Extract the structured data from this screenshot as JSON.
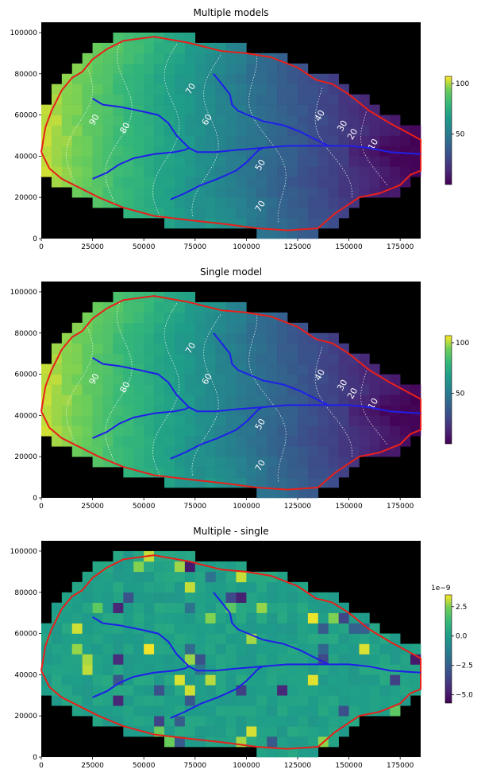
{
  "chart_data": [
    {
      "type": "heatmap",
      "title": "Multiple models",
      "x_ticks": [
        0,
        25000,
        50000,
        75000,
        100000,
        125000,
        150000,
        175000
      ],
      "y_ticks": [
        0,
        20000,
        40000,
        60000,
        80000,
        100000
      ],
      "xlim": [
        0,
        185000
      ],
      "ylim": [
        0,
        105000
      ],
      "colorbar": {
        "ticks": [
          50,
          100
        ],
        "range": [
          0,
          107
        ],
        "colormap": "viridis"
      },
      "contour_labels": [
        {
          "text": "90",
          "x": 27000,
          "y": 57000
        },
        {
          "text": "80",
          "x": 42000,
          "y": 53000
        },
        {
          "text": "70",
          "x": 74000,
          "y": 72000
        },
        {
          "text": "60",
          "x": 82000,
          "y": 57000
        },
        {
          "text": "50",
          "x": 108000,
          "y": 35000
        },
        {
          "text": "40",
          "x": 137000,
          "y": 59000
        },
        {
          "text": "30",
          "x": 148000,
          "y": 54000
        },
        {
          "text": "20",
          "x": 153000,
          "y": 50000
        },
        {
          "text": "10",
          "x": 163000,
          "y": 45000
        },
        {
          "text": "70",
          "x": 108000,
          "y": 15000
        }
      ]
    },
    {
      "type": "heatmap",
      "title": "Single model",
      "x_ticks": [
        0,
        25000,
        50000,
        75000,
        100000,
        125000,
        150000,
        175000
      ],
      "y_ticks": [
        0,
        20000,
        40000,
        60000,
        80000,
        100000
      ],
      "xlim": [
        0,
        185000
      ],
      "ylim": [
        0,
        105000
      ],
      "colorbar": {
        "ticks": [
          50,
          100
        ],
        "range": [
          0,
          107
        ],
        "colormap": "viridis"
      },
      "contour_labels": [
        {
          "text": "90",
          "x": 27000,
          "y": 57000
        },
        {
          "text": "80",
          "x": 42000,
          "y": 53000
        },
        {
          "text": "70",
          "x": 74000,
          "y": 72000
        },
        {
          "text": "60",
          "x": 82000,
          "y": 57000
        },
        {
          "text": "50",
          "x": 108000,
          "y": 35000
        },
        {
          "text": "40",
          "x": 137000,
          "y": 59000
        },
        {
          "text": "30",
          "x": 148000,
          "y": 54000
        },
        {
          "text": "20",
          "x": 153000,
          "y": 50000
        },
        {
          "text": "10",
          "x": 163000,
          "y": 45000
        },
        {
          "text": "70",
          "x": 108000,
          "y": 15000
        }
      ]
    },
    {
      "type": "heatmap",
      "title": "Multiple - single",
      "x_ticks": [
        0,
        25000,
        50000,
        75000,
        100000,
        125000,
        150000,
        175000
      ],
      "y_ticks": [
        0,
        20000,
        40000,
        60000,
        80000,
        100000
      ],
      "xlim": [
        0,
        185000
      ],
      "ylim": [
        0,
        105000
      ],
      "colorbar": {
        "ticks": [
          2.5,
          0.0,
          -2.5,
          -5.0
        ],
        "tick_labels": [
          "2.5",
          "0.0",
          "−2.5",
          "−5.0"
        ],
        "range": [
          -5.7,
          3.5
        ],
        "scale_label": "1e−9",
        "colormap": "viridis"
      },
      "contour_labels": []
    }
  ],
  "overlay_lines": {
    "boundary_color": "#e8201a",
    "stream_color": "#1f1fe8",
    "boundary": [
      [
        0,
        42000
      ],
      [
        2000,
        54000
      ],
      [
        5000,
        62000
      ],
      [
        10000,
        72000
      ],
      [
        15000,
        78000
      ],
      [
        20000,
        81000
      ],
      [
        25000,
        87000
      ],
      [
        32000,
        92000
      ],
      [
        40000,
        96000
      ],
      [
        55000,
        98000
      ],
      [
        72000,
        95000
      ],
      [
        88000,
        91000
      ],
      [
        100000,
        90000
      ],
      [
        112000,
        88000
      ],
      [
        125000,
        83000
      ],
      [
        134000,
        77000
      ],
      [
        142000,
        75000
      ],
      [
        150000,
        70000
      ],
      [
        160000,
        62000
      ],
      [
        170000,
        56000
      ],
      [
        185000,
        48000
      ],
      [
        185000,
        33000
      ],
      [
        180000,
        31000
      ],
      [
        175000,
        26000
      ],
      [
        165000,
        22000
      ],
      [
        155000,
        20000
      ],
      [
        143000,
        12000
      ],
      [
        135000,
        5000
      ],
      [
        120000,
        4000
      ],
      [
        105000,
        5000
      ],
      [
        90000,
        7000
      ],
      [
        72000,
        9000
      ],
      [
        55000,
        11000
      ],
      [
        40000,
        15000
      ],
      [
        28000,
        20000
      ],
      [
        18000,
        25000
      ],
      [
        10000,
        29000
      ],
      [
        4000,
        34000
      ],
      [
        0,
        42000
      ]
    ],
    "streams": [
      [
        [
          25000,
          68000
        ],
        [
          30000,
          65000
        ],
        [
          38000,
          64000
        ],
        [
          48000,
          62000
        ],
        [
          57000,
          60000
        ],
        [
          62000,
          56000
        ],
        [
          66000,
          50000
        ],
        [
          70000,
          46000
        ],
        [
          72000,
          44000
        ],
        [
          76000,
          42000
        ],
        [
          85000,
          42000
        ],
        [
          95000,
          43000
        ],
        [
          108000,
          44000
        ],
        [
          120000,
          45000
        ],
        [
          135000,
          45000
        ],
        [
          150000,
          45000
        ],
        [
          160000,
          44000
        ],
        [
          170000,
          42000
        ],
        [
          185000,
          41000
        ]
      ],
      [
        [
          25000,
          29000
        ],
        [
          32000,
          32000
        ],
        [
          38000,
          36000
        ],
        [
          45000,
          39000
        ],
        [
          55000,
          41000
        ],
        [
          65000,
          42000
        ],
        [
          70000,
          43000
        ],
        [
          72000,
          44000
        ]
      ],
      [
        [
          84000,
          80000
        ],
        [
          88000,
          75000
        ],
        [
          92000,
          70000
        ],
        [
          93000,
          65000
        ],
        [
          96000,
          62000
        ],
        [
          108000,
          57000
        ],
        [
          118000,
          55000
        ],
        [
          126000,
          52000
        ],
        [
          132000,
          49000
        ],
        [
          138000,
          46000
        ],
        [
          140000,
          45000
        ]
      ],
      [
        [
          63000,
          19000
        ],
        [
          70000,
          22000
        ],
        [
          78000,
          26000
        ],
        [
          86000,
          29000
        ],
        [
          95000,
          33000
        ],
        [
          100000,
          37000
        ],
        [
          103000,
          40000
        ],
        [
          106000,
          43000
        ],
        [
          108000,
          44000
        ]
      ]
    ]
  }
}
